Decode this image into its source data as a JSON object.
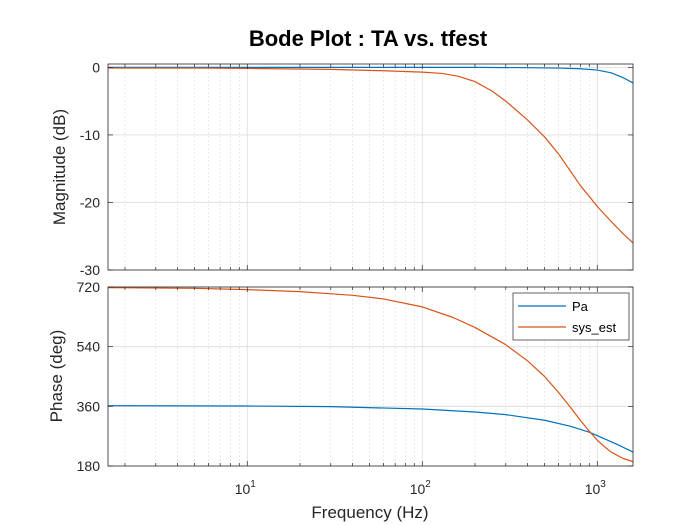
{
  "figure": {
    "title": "Bode Plot : TA vs. tfest",
    "xlabel": "Frequency  (Hz)"
  },
  "colors": {
    "Pa": "#0072BD",
    "sys_est": "#D95319",
    "grid": "#dcdcdc",
    "axis": "#262626"
  },
  "chart_data": {
    "type": "line",
    "title": "Bode Plot : TA vs. tfest",
    "xlabel": "Frequency  (Hz)",
    "xscale": "log",
    "xlim": [
      1.6,
      1600
    ],
    "xticks": [
      10,
      100,
      1000
    ],
    "xtick_labels": [
      {
        "base": "10",
        "exp": "1"
      },
      {
        "base": "10",
        "exp": "2"
      },
      {
        "base": "10",
        "exp": "3"
      }
    ],
    "grid": true,
    "subplots": [
      {
        "name": "magnitude",
        "ylabel": "Magnitude (dB)",
        "ylim": [
          -30,
          0.5
        ],
        "yticks": [
          0,
          -10,
          -20,
          -30
        ],
        "series": [
          {
            "name": "Pa",
            "x": [
              1.6,
              10,
              50,
              100,
              200,
              400,
              600,
              800,
              1000,
              1200,
              1400,
              1600
            ],
            "y": [
              0,
              0,
              0,
              0,
              0,
              -0.05,
              -0.1,
              -0.2,
              -0.4,
              -0.8,
              -1.5,
              -2.3
            ]
          },
          {
            "name": "sys_est",
            "x": [
              1.6,
              5,
              10,
              30,
              60,
              100,
              130,
              160,
              200,
              250,
              300,
              400,
              500,
              600,
              700,
              800,
              900,
              1000,
              1200,
              1400,
              1600
            ],
            "y": [
              -0.1,
              -0.1,
              -0.15,
              -0.3,
              -0.5,
              -0.7,
              -0.9,
              -1.3,
              -2.1,
              -3.5,
              -5.0,
              -7.8,
              -10.3,
              -12.8,
              -15.3,
              -17.5,
              -19.1,
              -20.6,
              -22.8,
              -24.6,
              -26.0
            ]
          }
        ]
      },
      {
        "name": "phase",
        "ylabel": "Phase (deg)",
        "ylim": [
          180,
          720
        ],
        "yticks": [
          720,
          540,
          360,
          180
        ],
        "legend": {
          "position": "top-right",
          "entries": [
            "Pa",
            "sys_est"
          ]
        },
        "series": [
          {
            "name": "Pa",
            "x": [
              1.6,
              10,
              30,
              100,
              200,
              300,
              500,
              700,
              900,
              1100,
              1300,
              1600
            ],
            "y": [
              362,
              361,
              359,
              352,
              343,
              335,
              318,
              300,
              282,
              262,
              245,
              222
            ]
          },
          {
            "name": "sys_est",
            "x": [
              1.6,
              5,
              10,
              20,
              40,
              60,
              100,
              150,
              200,
              300,
              400,
              500,
              600,
              700,
              800,
              900,
              1000,
              1100,
              1200,
              1400,
              1600
            ],
            "y": [
              718,
              716,
              712,
              706,
              695,
              684,
              660,
              628,
              598,
              546,
              497,
              450,
              402,
              358,
              318,
              285,
              258,
              238,
              222,
              203,
              193
            ]
          }
        ]
      }
    ]
  }
}
